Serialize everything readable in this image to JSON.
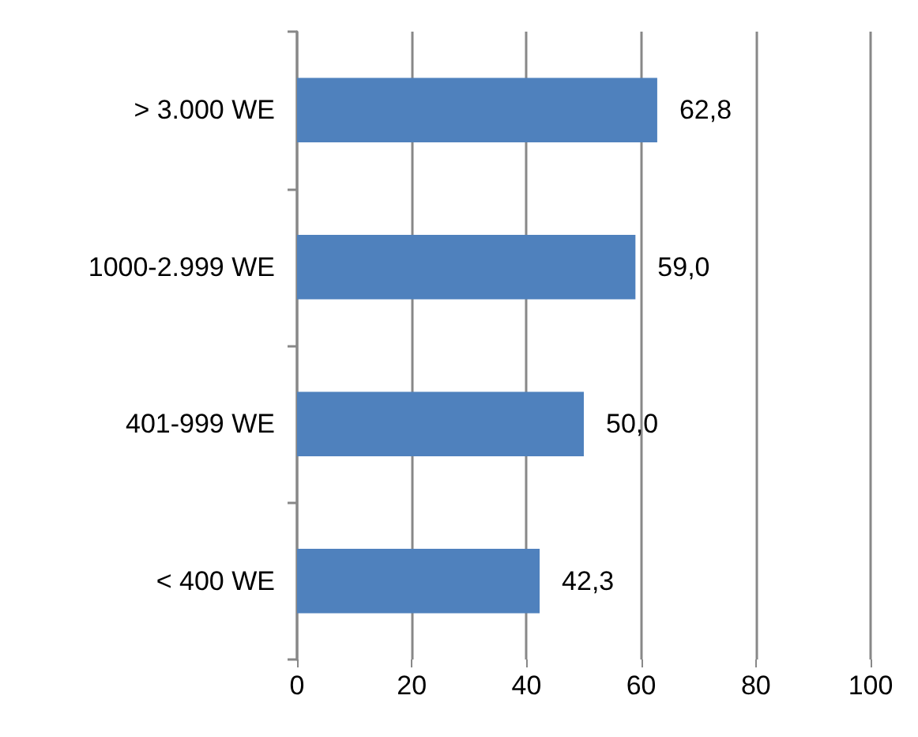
{
  "chart_data": {
    "type": "bar",
    "orientation": "horizontal",
    "categories": [
      "> 3.000 WE",
      "1000-2.999 WE",
      "401-999 WE",
      "< 400 WE"
    ],
    "values": [
      62.8,
      59.0,
      50.0,
      42.3
    ],
    "value_labels": [
      "62,8",
      "59,0",
      "50,0",
      "42,3"
    ],
    "color": "#4f81bd",
    "xlim": [
      0,
      100
    ],
    "xticks": [
      0,
      20,
      40,
      60,
      80,
      100
    ],
    "grid": "x"
  }
}
